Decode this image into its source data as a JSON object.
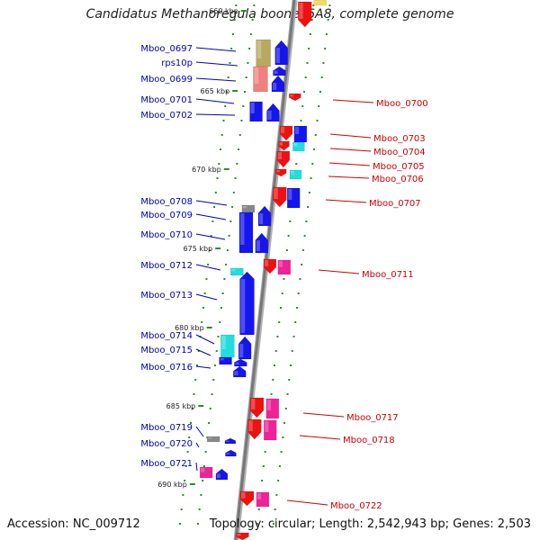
{
  "title": "Candidatus Methanoregula boonei 6A8, complete genome",
  "accession_text": "Accession: NC_009712",
  "summary_text": "Topology: circular; Length: 2,542,943 bp; Genes: 2,503",
  "colors": {
    "backbone": "#777777",
    "tick": "#2e8b2e",
    "left_label": "#0000bb",
    "right_label": "#cc0000",
    "gene_blue": "#1515ee",
    "gene_red": "#ee1111",
    "gene_magenta": "#ee2299",
    "gene_cyan": "#22dddd",
    "gene_olive": "#b8a860",
    "gene_pink": "#f08080",
    "gene_gray": "#888888",
    "gene_yellow": "#eedd66"
  },
  "kbp_labels": [
    "660 kbp",
    "665 kbp",
    "670 kbp",
    "675 kbp",
    "680 kbp",
    "685 kbp",
    "690 kbp"
  ],
  "left_genes": [
    "Mboo_0697",
    "rps10p",
    "Mboo_0699",
    "Mboo_0701",
    "Mboo_0702",
    "Mboo_0708",
    "Mboo_0709",
    "Mboo_0710",
    "Mboo_0712",
    "Mboo_0713",
    "Mboo_0714",
    "Mboo_0715",
    "Mboo_0716",
    "Mboo_0719",
    "Mboo_0720",
    "Mboo_0721"
  ],
  "right_genes": [
    "Mboo_0700",
    "Mboo_0703",
    "Mboo_0704",
    "Mboo_0705",
    "Mboo_0706",
    "Mboo_0707",
    "Mboo_0711",
    "Mboo_0717",
    "Mboo_0718",
    "Mboo_0722"
  ]
}
